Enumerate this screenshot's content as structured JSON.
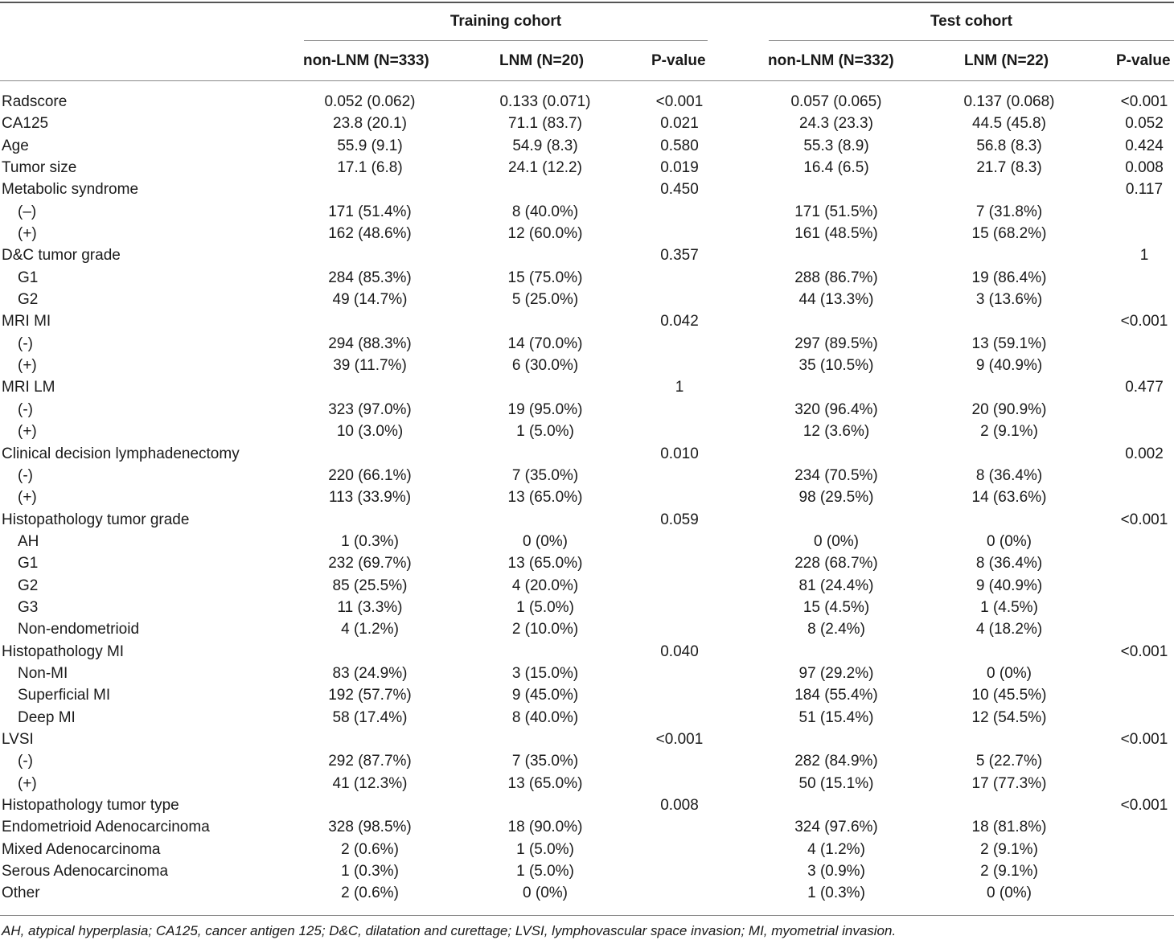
{
  "header": {
    "training_title": "Training cohort",
    "test_title": "Test cohort",
    "columns": [
      "non-LNM (N=333)",
      "LNM (N=20)",
      "P-value",
      "non-LNM (N=332)",
      "LNM (N=22)",
      "P-value"
    ]
  },
  "rows": [
    {
      "label": "Radscore",
      "indent": false,
      "values": [
        "0.052 (0.062)",
        "0.133 (0.071)",
        "<0.001",
        "0.057 (0.065)",
        "0.137 (0.068)",
        "<0.001"
      ]
    },
    {
      "label": "CA125",
      "indent": false,
      "values": [
        "23.8 (20.1)",
        "71.1 (83.7)",
        "0.021",
        "24.3 (23.3)",
        "44.5 (45.8)",
        "0.052"
      ]
    },
    {
      "label": "Age",
      "indent": false,
      "values": [
        "55.9 (9.1)",
        "54.9 (8.3)",
        "0.580",
        "55.3 (8.9)",
        "56.8 (8.3)",
        "0.424"
      ]
    },
    {
      "label": "Tumor size",
      "indent": false,
      "values": [
        "17.1 (6.8)",
        "24.1 (12.2)",
        "0.019",
        "16.4 (6.5)",
        "21.7 (8.3)",
        "0.008"
      ]
    },
    {
      "label": "Metabolic syndrome",
      "indent": false,
      "values": [
        "",
        "",
        "0.450",
        "",
        "",
        "0.117"
      ]
    },
    {
      "label": "(–)",
      "indent": true,
      "values": [
        "171 (51.4%)",
        "8 (40.0%)",
        "",
        "171 (51.5%)",
        "7 (31.8%)",
        ""
      ]
    },
    {
      "label": "(+)",
      "indent": true,
      "values": [
        "162 (48.6%)",
        "12 (60.0%)",
        "",
        "161 (48.5%)",
        "15 (68.2%)",
        ""
      ]
    },
    {
      "label": "D&C tumor grade",
      "indent": false,
      "values": [
        "",
        "",
        "0.357",
        "",
        "",
        "1"
      ]
    },
    {
      "label": "G1",
      "indent": true,
      "values": [
        "284 (85.3%)",
        "15 (75.0%)",
        "",
        "288 (86.7%)",
        "19 (86.4%)",
        ""
      ]
    },
    {
      "label": "G2",
      "indent": true,
      "values": [
        "49 (14.7%)",
        "5 (25.0%)",
        "",
        "44 (13.3%)",
        "3 (13.6%)",
        ""
      ]
    },
    {
      "label": "MRI MI",
      "indent": false,
      "values": [
        "",
        "",
        "0.042",
        "",
        "",
        "<0.001"
      ]
    },
    {
      "label": "(-)",
      "indent": true,
      "values": [
        "294 (88.3%)",
        "14 (70.0%)",
        "",
        "297 (89.5%)",
        "13 (59.1%)",
        ""
      ]
    },
    {
      "label": "(+)",
      "indent": true,
      "values": [
        "39 (11.7%)",
        "6 (30.0%)",
        "",
        "35 (10.5%)",
        "9 (40.9%)",
        ""
      ]
    },
    {
      "label": "MRI LM",
      "indent": false,
      "values": [
        "",
        "",
        "1",
        "",
        "",
        "0.477"
      ]
    },
    {
      "label": "(-)",
      "indent": true,
      "values": [
        "323 (97.0%)",
        "19 (95.0%)",
        "",
        "320 (96.4%)",
        "20 (90.9%)",
        ""
      ]
    },
    {
      "label": "(+)",
      "indent": true,
      "values": [
        "10 (3.0%)",
        "1 (5.0%)",
        "",
        "12 (3.6%)",
        "2 (9.1%)",
        ""
      ]
    },
    {
      "label": "Clinical decision lymphadenectomy",
      "indent": false,
      "values": [
        "",
        "",
        "0.010",
        "",
        "",
        "0.002"
      ]
    },
    {
      "label": "(-)",
      "indent": true,
      "values": [
        "220 (66.1%)",
        "7 (35.0%)",
        "",
        "234 (70.5%)",
        "8 (36.4%)",
        ""
      ]
    },
    {
      "label": "(+)",
      "indent": true,
      "values": [
        "113 (33.9%)",
        "13 (65.0%)",
        "",
        "98 (29.5%)",
        "14 (63.6%)",
        ""
      ]
    },
    {
      "label": "Histopathology tumor grade",
      "indent": false,
      "values": [
        "",
        "",
        "0.059",
        "",
        "",
        "<0.001"
      ]
    },
    {
      "label": "AH",
      "indent": true,
      "values": [
        "1 (0.3%)",
        "0 (0%)",
        "",
        "0 (0%)",
        "0 (0%)",
        ""
      ]
    },
    {
      "label": "G1",
      "indent": true,
      "values": [
        "232 (69.7%)",
        "13 (65.0%)",
        "",
        "228 (68.7%)",
        "8 (36.4%)",
        ""
      ]
    },
    {
      "label": "G2",
      "indent": true,
      "values": [
        "85 (25.5%)",
        "4 (20.0%)",
        "",
        "81 (24.4%)",
        "9 (40.9%)",
        ""
      ]
    },
    {
      "label": "G3",
      "indent": true,
      "values": [
        "11 (3.3%)",
        "1 (5.0%)",
        "",
        "15 (4.5%)",
        "1 (4.5%)",
        ""
      ]
    },
    {
      "label": "Non-endometrioid",
      "indent": true,
      "values": [
        "4 (1.2%)",
        "2 (10.0%)",
        "",
        "8 (2.4%)",
        "4 (18.2%)",
        ""
      ]
    },
    {
      "label": "Histopathology MI",
      "indent": false,
      "values": [
        "",
        "",
        "0.040",
        "",
        "",
        "<0.001"
      ]
    },
    {
      "label": "Non-MI",
      "indent": true,
      "values": [
        "83 (24.9%)",
        "3 (15.0%)",
        "",
        "97 (29.2%)",
        "0 (0%)",
        ""
      ]
    },
    {
      "label": "Superficial MI",
      "indent": true,
      "values": [
        "192 (57.7%)",
        "9 (45.0%)",
        "",
        "184 (55.4%)",
        "10 (45.5%)",
        ""
      ]
    },
    {
      "label": "Deep MI",
      "indent": true,
      "values": [
        "58 (17.4%)",
        "8 (40.0%)",
        "",
        "51 (15.4%)",
        "12 (54.5%)",
        ""
      ]
    },
    {
      "label": "LVSI",
      "indent": false,
      "values": [
        "",
        "",
        "<0.001",
        "",
        "",
        "<0.001"
      ]
    },
    {
      "label": "(-)",
      "indent": true,
      "values": [
        "292 (87.7%)",
        "7 (35.0%)",
        "",
        "282 (84.9%)",
        "5 (22.7%)",
        ""
      ]
    },
    {
      "label": "(+)",
      "indent": true,
      "values": [
        "41 (12.3%)",
        "13 (65.0%)",
        "",
        "50 (15.1%)",
        "17 (77.3%)",
        ""
      ]
    },
    {
      "label": "Histopathology tumor type",
      "indent": false,
      "values": [
        "",
        "",
        "0.008",
        "",
        "",
        "<0.001"
      ]
    },
    {
      "label": "Endometrioid Adenocarcinoma",
      "indent": false,
      "values": [
        "328 (98.5%)",
        "18 (90.0%)",
        "",
        "324 (97.6%)",
        "18 (81.8%)",
        ""
      ]
    },
    {
      "label": "Mixed Adenocarcinoma",
      "indent": false,
      "values": [
        "2 (0.6%)",
        "1 (5.0%)",
        "",
        "4 (1.2%)",
        "2 (9.1%)",
        ""
      ]
    },
    {
      "label": "Serous Adenocarcinoma",
      "indent": false,
      "values": [
        "1 (0.3%)",
        "1 (5.0%)",
        "",
        "3 (0.9%)",
        "2 (9.1%)",
        ""
      ]
    },
    {
      "label": "Other",
      "indent": false,
      "values": [
        "2 (0.6%)",
        "0 (0%)",
        "",
        "1 (0.3%)",
        "0 (0%)",
        ""
      ]
    }
  ],
  "footnote": "AH, atypical hyperplasia; CA125, cancer antigen 125; D&C, dilatation and curettage; LVSI, lymphovascular space invasion; MI, myometrial invasion."
}
